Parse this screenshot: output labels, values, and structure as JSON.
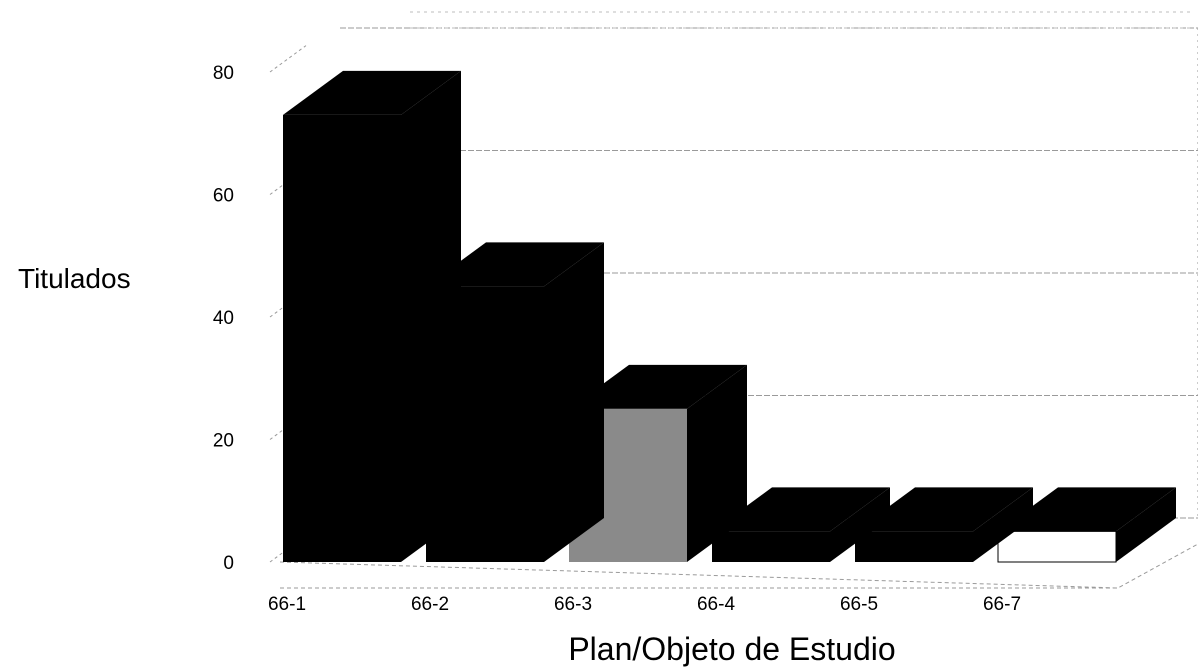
{
  "chart_data": {
    "type": "bar",
    "title": "",
    "xlabel": "Plan/Objeto de Estudio",
    "ylabel": "Titulados",
    "categories": [
      "66-1",
      "66-2",
      "66-3",
      "66-4",
      "66-5",
      "66-7"
    ],
    "values": [
      73,
      45,
      25,
      5,
      5,
      5
    ],
    "yticks": [
      0,
      20,
      40,
      60,
      80
    ],
    "ylim": [
      0,
      80
    ],
    "grid": true,
    "three_d": true,
    "colors": {
      "bar": "#000000",
      "bar_shaded": "#8a8a8a",
      "bar_light": "#ffffff",
      "grid": "#9a9a9a",
      "background": "#ffffff"
    }
  }
}
